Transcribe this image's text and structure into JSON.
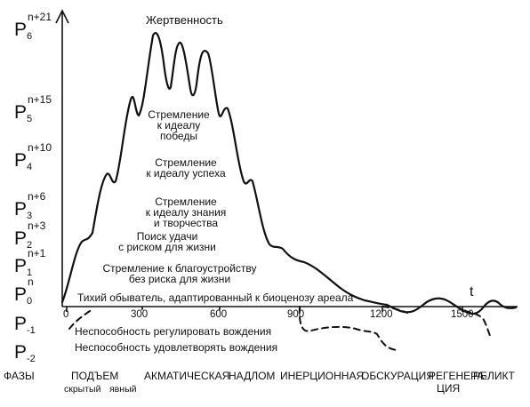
{
  "levels": [
    {
      "base": "P",
      "sub": "6",
      "sup": "n+21"
    },
    {
      "base": "P",
      "sub": "5",
      "sup": "n+15"
    },
    {
      "base": "P",
      "sub": "4",
      "sup": "n+10"
    },
    {
      "base": "P",
      "sub": "3",
      "sup": "n+6"
    },
    {
      "base": "P",
      "sub": "2",
      "sup": "n+3"
    },
    {
      "base": "P",
      "sub": "1",
      "sup": "n+1"
    },
    {
      "base": "P",
      "sub": "0",
      "sup": "n"
    },
    {
      "base": "P",
      "sub": "-1",
      "sup": ""
    },
    {
      "base": "P",
      "sub": "-2",
      "sup": ""
    }
  ],
  "labels": {
    "sacrifice": "Жертвенность",
    "victory": [
      "Стремление",
      "к идеалу",
      "победы"
    ],
    "success": [
      "Стремление",
      "к идеалу успеха"
    ],
    "knowledge": [
      "Стремление",
      "к идеалу знания",
      "и творчества"
    ],
    "luck": [
      "Поиск удачи",
      "с риском для жизни"
    ],
    "comfort": [
      "Стремление к благоустройству",
      "без риска для жизни"
    ],
    "philistine": "Тихий обыватель, адаптированный к биоценозу ареала",
    "unable_regulate": "Неспособность регулировать вождения",
    "unable_satisfy": "Неспособность удовлетворять вождения",
    "t": "t"
  },
  "ticks": [
    "0",
    "300",
    "600",
    "900",
    "1200",
    "1500"
  ],
  "phases": {
    "title": "ФАЗЫ",
    "rise": "ПОДЪЕМ",
    "rise_hidden": "скрытый",
    "rise_explicit": "явный",
    "acmatic": "АКМАТИЧЕСКАЯ",
    "break": "НАДЛОМ",
    "inertial": "ИНЕРЦИОННАЯ",
    "obscuration": "ОБСКУРАЦИЯ",
    "regeneration_1": "РЕГЕНЕРА-",
    "regeneration_2": "ЦИЯ",
    "relict": "РЕЛИКТ"
  }
}
